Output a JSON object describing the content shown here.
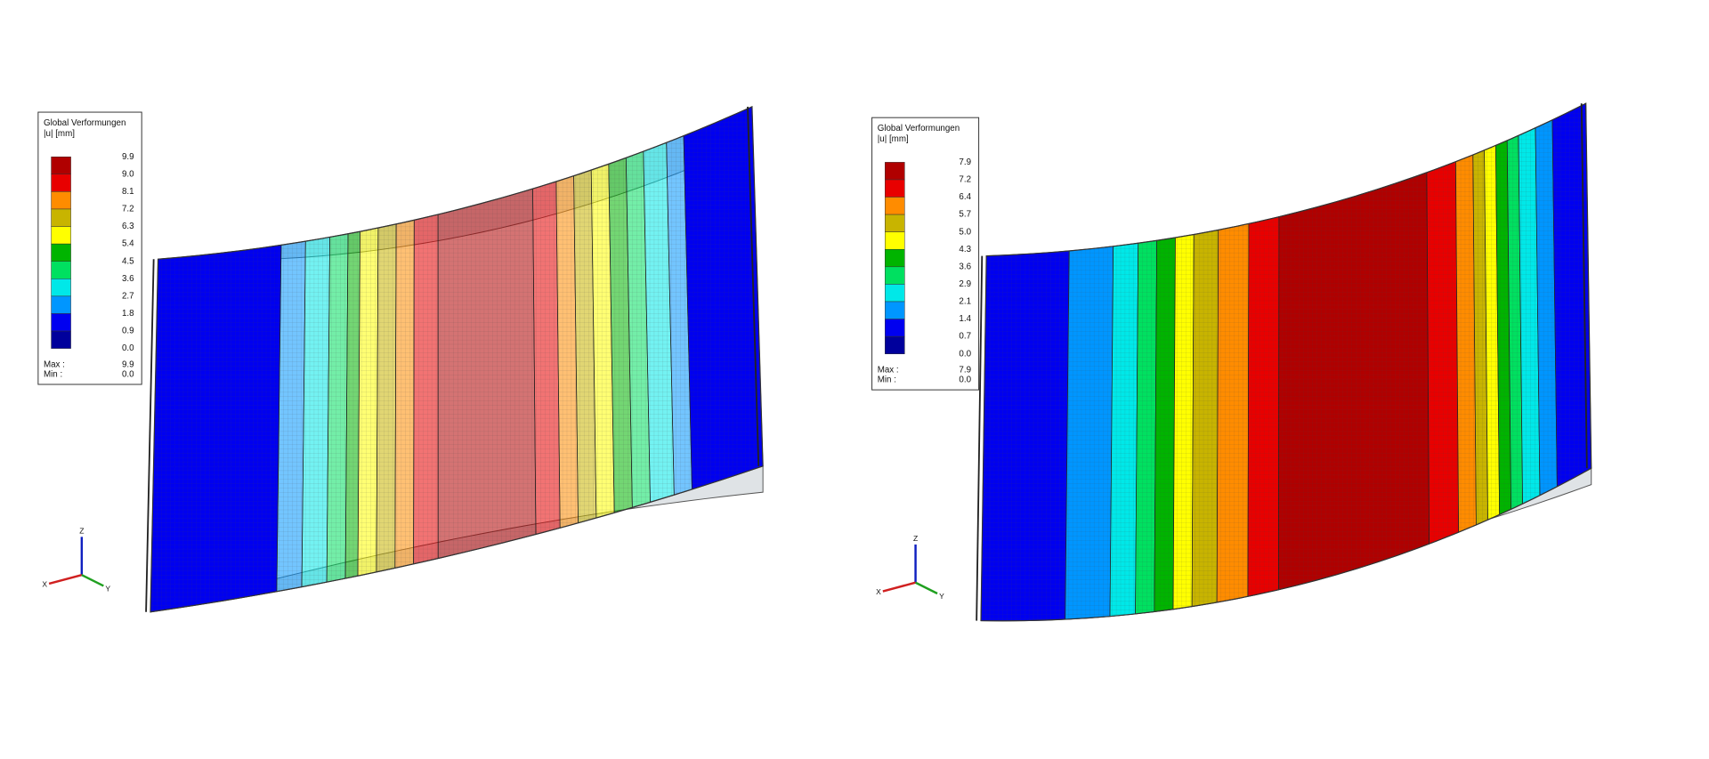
{
  "panels": [
    {
      "legend": {
        "title": "Global Verformungen",
        "unit": "|u| [mm]",
        "levels": [
          "9.9",
          "9.0",
          "8.1",
          "7.2",
          "6.3",
          "5.4",
          "4.5",
          "3.6",
          "2.7",
          "1.8",
          "0.9",
          "0.0"
        ],
        "max_label": "Max :",
        "max": "9.9",
        "min_label": "Min :",
        "min": "0.0"
      },
      "axes": {
        "x": "X",
        "y": "Y",
        "z": "Z"
      }
    },
    {
      "legend": {
        "title": "Global Verformungen",
        "unit": "|u| [mm]",
        "levels": [
          "7.9",
          "7.2",
          "6.4",
          "5.7",
          "5.0",
          "4.3",
          "3.6",
          "2.9",
          "2.1",
          "1.4",
          "0.7",
          "0.0"
        ],
        "max_label": "Max :",
        "max": "7.9",
        "min_label": "Min :",
        "min": "0.0"
      },
      "axes": {
        "x": "X",
        "y": "Y",
        "z": "Z"
      }
    }
  ],
  "legend_colors": [
    "#b00000",
    "#e80000",
    "#ff8c00",
    "#c8b400",
    "#ffff00",
    "#00b400",
    "#00e060",
    "#00e8e8",
    "#0096ff",
    "#0000f0",
    "#00009c"
  ]
}
